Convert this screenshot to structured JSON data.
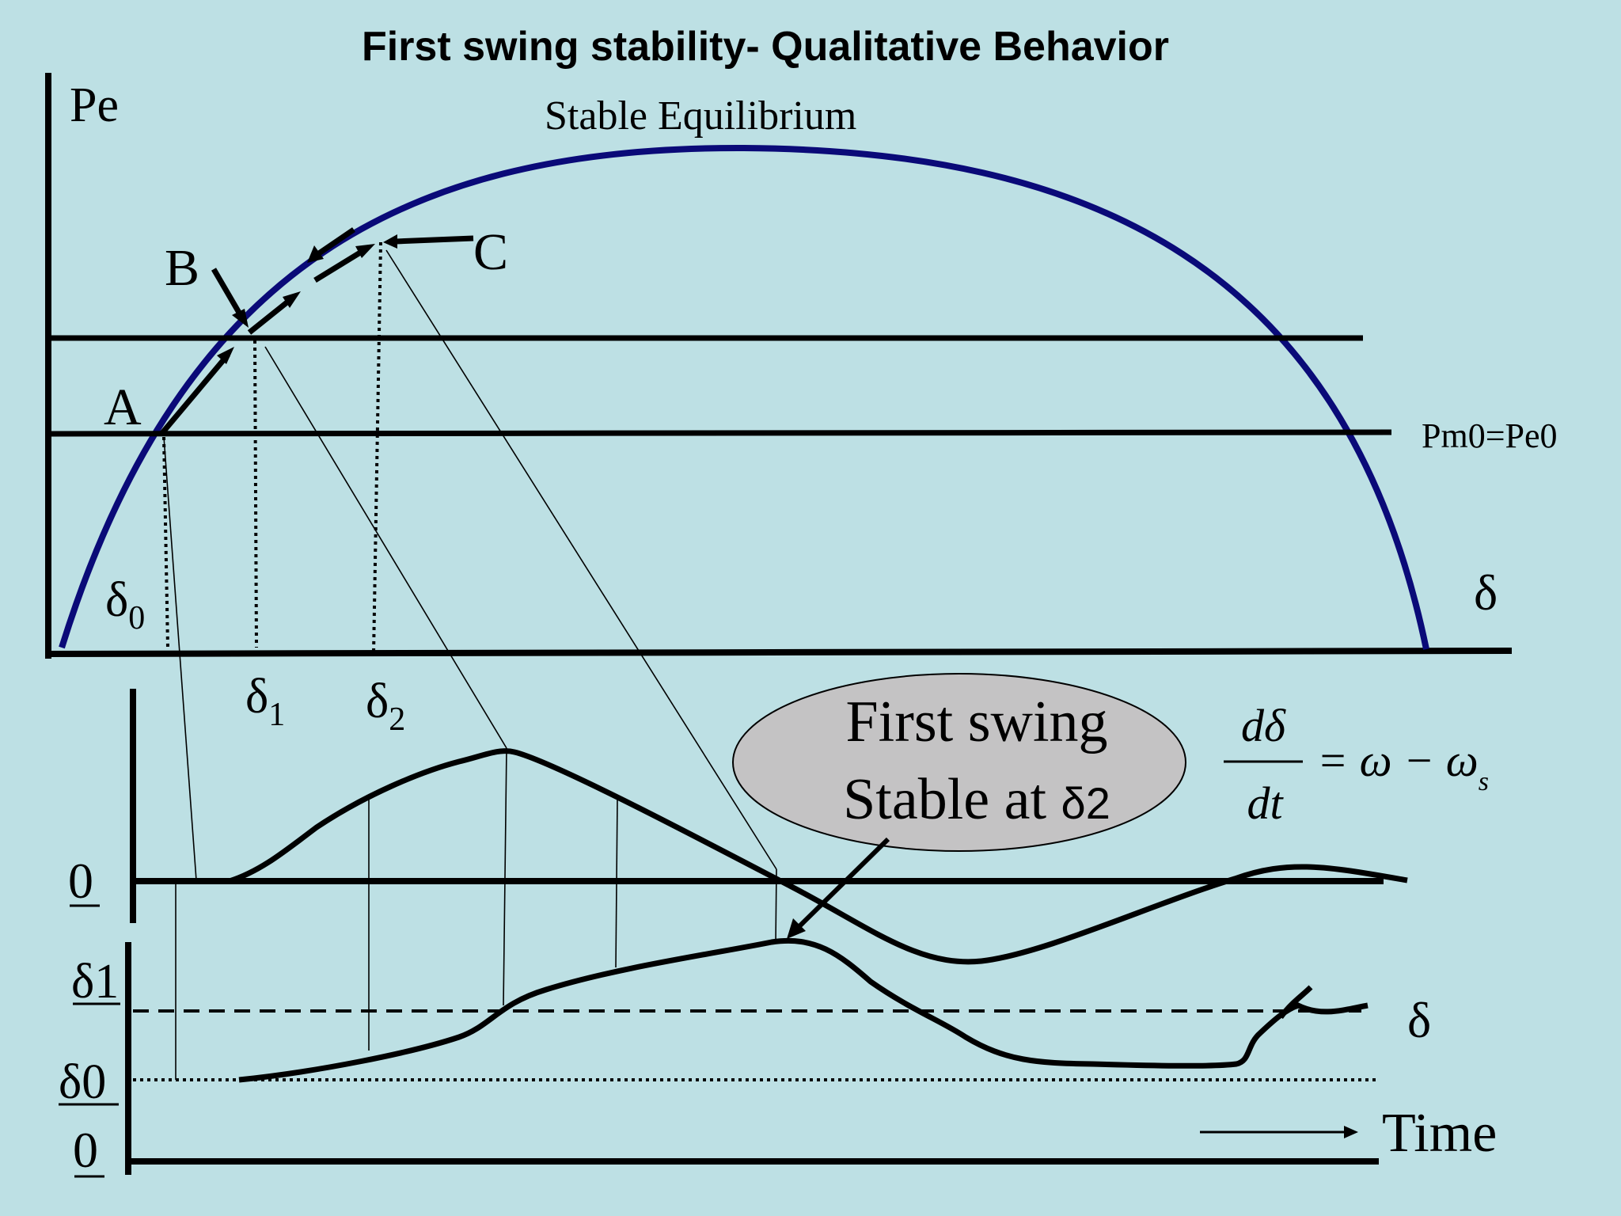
{
  "title": "First swing stability- Qualitative Behavior",
  "power_angle": {
    "y_label": "Pe",
    "x_label": "δ",
    "curve_label": "Stable Equilibrium",
    "line_label": "Pm0=Pe0",
    "point_a": "A",
    "point_b": "B",
    "point_c": "C",
    "delta0": {
      "base": "δ",
      "sub": "0"
    },
    "delta1": {
      "base": "δ",
      "sub": "1"
    },
    "delta2": {
      "base": "δ",
      "sub": "2"
    }
  },
  "speed_plot": {
    "zero_label": "0"
  },
  "angle_plot": {
    "delta1_label": "δ1",
    "delta0_label": "δ0",
    "zero_label": "0",
    "curve_label": "δ",
    "time_label": "Time"
  },
  "callout": {
    "line1": "First swing",
    "line2_text": "Stable at ",
    "line2_symbol": "δ2",
    "fill_color": "#c4c3c4"
  },
  "equation": {
    "numerator": "dδ",
    "denominator": "dt",
    "rhs": "= ω − ω",
    "subscript": "s"
  },
  "colors": {
    "background": "#bde0e4",
    "curve": "#0a0a78"
  }
}
